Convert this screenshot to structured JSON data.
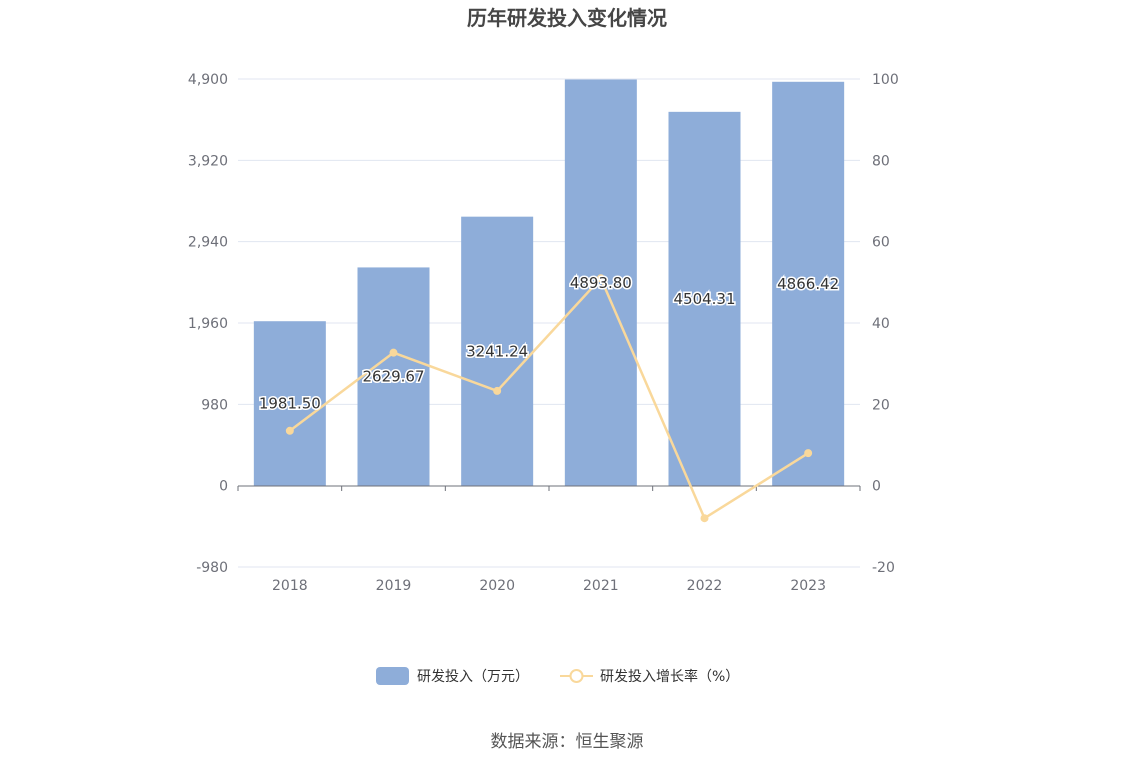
{
  "chart_data": {
    "type": "bar",
    "title": "历年研发投入变化情况",
    "categories": [
      "2018",
      "2019",
      "2020",
      "2021",
      "2022",
      "2023"
    ],
    "series": [
      {
        "name": "研发投入（万元）",
        "type": "bar",
        "axis": "left",
        "color": "#8eadd9",
        "values": [
          1981.5,
          2629.67,
          3241.24,
          4893.8,
          4504.31,
          4866.42
        ],
        "labels": [
          "1981.50",
          "2629.67",
          "3241.24",
          "4893.80",
          "4504.31",
          "4866.42"
        ]
      },
      {
        "name": "研发投入增长率（%）",
        "type": "line",
        "axis": "right",
        "color": "#f9d89b",
        "values": [
          13.5,
          32.7,
          23.3,
          51.0,
          -8.0,
          8.0
        ]
      }
    ],
    "y_left": {
      "ylim": [
        -980,
        4900
      ],
      "ticks": [
        "-980",
        "0",
        "980",
        "1,960",
        "2,940",
        "3,920",
        "4,900"
      ],
      "tick_values": [
        -980,
        0,
        980,
        1960,
        2940,
        3920,
        4900
      ]
    },
    "y_right": {
      "ylim": [
        -20,
        100
      ],
      "ticks": [
        "-20",
        "0",
        "20",
        "40",
        "60",
        "80",
        "100"
      ],
      "tick_values": [
        -20,
        0,
        20,
        40,
        60,
        80,
        100
      ]
    },
    "grid": true,
    "legend_position": "bottom-center"
  },
  "source_text": "数据来源：恒生聚源",
  "colors": {
    "grid": "#e0e6f1",
    "axis": "#6e7079",
    "title": "#464646"
  }
}
